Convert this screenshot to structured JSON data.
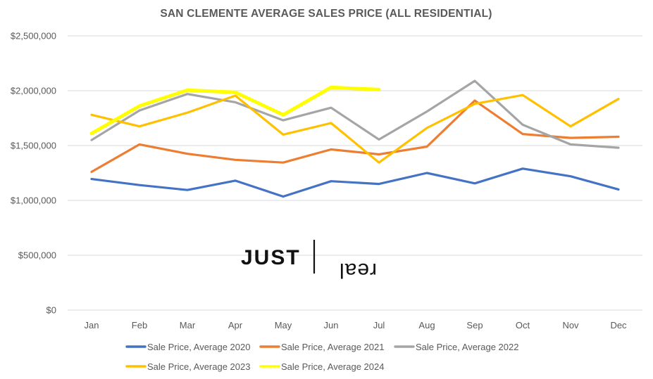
{
  "chart_data": {
    "type": "line",
    "title": "SAN CLEMENTE AVERAGE SALES PRICE (ALL RESIDENTIAL)",
    "xlabel": "",
    "ylabel": "",
    "categories": [
      "Jan",
      "Feb",
      "Mar",
      "Apr",
      "May",
      "Jun",
      "Jul",
      "Aug",
      "Sep",
      "Oct",
      "Nov",
      "Dec"
    ],
    "ylim": [
      0,
      2500000
    ],
    "yticks": [
      0,
      500000,
      1000000,
      1500000,
      2000000,
      2500000
    ],
    "ytick_labels": [
      "$0",
      "$500,000",
      "$1,000,000",
      "$1,500,000",
      "$2,000,000",
      "$2,500,000"
    ],
    "grid": true,
    "legend_position": "bottom",
    "series": [
      {
        "name": "Sale Price, Average 2020",
        "color": "#4472c4",
        "values": [
          1195000,
          1140000,
          1095000,
          1180000,
          1035000,
          1175000,
          1150000,
          1250000,
          1155000,
          1290000,
          1220000,
          1100000
        ]
      },
      {
        "name": "Sale Price, Average 2021",
        "color": "#ed7d31",
        "values": [
          1260000,
          1510000,
          1425000,
          1370000,
          1345000,
          1465000,
          1420000,
          1490000,
          1910000,
          1605000,
          1570000,
          1580000
        ]
      },
      {
        "name": "Sale Price, Average 2022",
        "color": "#a5a5a5",
        "values": [
          1550000,
          1820000,
          1970000,
          1895000,
          1730000,
          1845000,
          1555000,
          1810000,
          2090000,
          1690000,
          1510000,
          1480000
        ]
      },
      {
        "name": "Sale Price, Average 2023",
        "color": "#ffc000",
        "values": [
          1780000,
          1675000,
          1800000,
          1955000,
          1600000,
          1705000,
          1345000,
          1660000,
          1880000,
          1960000,
          1675000,
          1925000
        ]
      },
      {
        "name": "Sale Price, Average 2024",
        "color": "#ffff00",
        "values": [
          1610000,
          1860000,
          2005000,
          1985000,
          1780000,
          2030000,
          2010000,
          null,
          null,
          null,
          null,
          null
        ]
      }
    ]
  },
  "logo": {
    "word_bold": "JUST",
    "word_light": "real"
  }
}
